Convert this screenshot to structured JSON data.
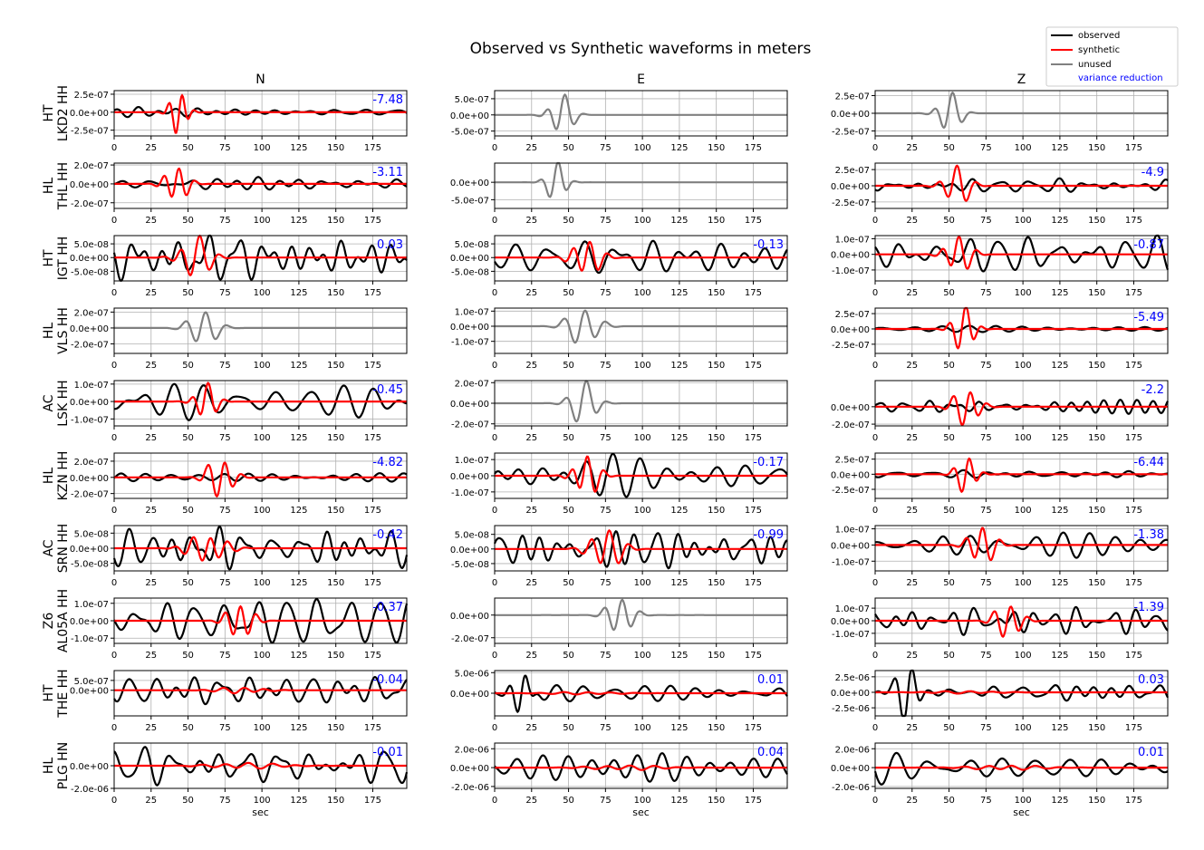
{
  "chart_data": {
    "type": "line",
    "title": "Observed vs Synthetic waveforms in meters",
    "xlabel": "sec",
    "xlim": [
      0,
      198
    ],
    "xticks": [
      0,
      25,
      50,
      75,
      100,
      125,
      150,
      175
    ],
    "grid": true,
    "legend": {
      "placement": "top-right",
      "entries": [
        {
          "label": "observed",
          "color": "#000000"
        },
        {
          "label": "synthetic",
          "color": "#ff0000"
        },
        {
          "label": "unused",
          "color": "#808080"
        },
        {
          "label": "variance reduction",
          "color": "#0000ff"
        }
      ]
    },
    "columns": [
      "N",
      "E",
      "Z"
    ],
    "stations": [
      {
        "net": "HT",
        "sta": "LKD2 HH",
        "channels": [
          {
            "used": true,
            "vr": "-7.48",
            "ylim": [
              -3.3e-07,
              3e-07
            ],
            "ticks": [
              2.5e-07,
              0,
              -2.5e-07
            ],
            "obs": {
              "amp": 5e-08,
              "seed": 1,
              "s": 0,
              "e": 198
            },
            "syn": {
              "amp": 3e-07,
              "center": 44,
              "width": 14,
              "period": 9,
              "seed": 11
            }
          },
          {
            "used": false,
            "vr": "",
            "ylim": [
              -6.5e-07,
              7.5e-07
            ],
            "ticks": [
              5e-07,
              0,
              -5e-07
            ],
            "obs": {
              "amp": 7e-07,
              "center": 45,
              "width": 18,
              "period": 13,
              "seed": 2
            }
          },
          {
            "used": false,
            "vr": "",
            "ylim": [
              -3.2e-07,
              3.2e-07
            ],
            "ticks": [
              2.5e-07,
              0,
              -2.5e-07
            ],
            "obs": {
              "amp": 3e-07,
              "center": 50,
              "width": 18,
              "period": 13,
              "seed": 3
            }
          }
        ]
      },
      {
        "net": "HL",
        "sta": "THL HH",
        "channels": [
          {
            "used": true,
            "vr": "-3.11",
            "ylim": [
              -2.6e-07,
              2.2e-07
            ],
            "ticks": [
              2e-07,
              0,
              -2e-07
            ],
            "obs": {
              "amp": 5e-08,
              "seed": 4,
              "s": 0,
              "e": 198
            },
            "syn": {
              "amp": 2.2e-07,
              "center": 42,
              "width": 18,
              "period": 11,
              "seed": 12
            }
          },
          {
            "used": false,
            "vr": "",
            "ylim": [
              -7.5e-07,
              5.5e-07
            ],
            "ticks": [
              0,
              -5e-07
            ],
            "obs": {
              "amp": 5.5e-07,
              "center": 42,
              "width": 16,
              "period": 12,
              "seed": 5
            }
          },
          {
            "used": true,
            "vr": "-4.9",
            "ylim": [
              -3.5e-07,
              3.5e-07
            ],
            "ticks": [
              2.5e-07,
              0,
              -2.5e-07
            ],
            "obs": {
              "amp": 8e-08,
              "seed": 6,
              "s": 0,
              "e": 198
            },
            "syn": {
              "amp": 3.3e-07,
              "center": 55,
              "width": 20,
              "period": 13,
              "seed": 13
            }
          }
        ]
      },
      {
        "net": "HT",
        "sta": "IGT HH",
        "channels": [
          {
            "used": true,
            "vr": "0.03",
            "ylim": [
              -8.5e-08,
              8e-08
            ],
            "ticks": [
              5e-08,
              0,
              -5e-08
            ],
            "obs": {
              "amp": 7.5e-08,
              "seed": 7,
              "s": 0,
              "e": 198
            },
            "syn": {
              "amp": 7.5e-08,
              "center": 55,
              "width": 25,
              "period": 13,
              "seed": 14
            }
          },
          {
            "used": true,
            "vr": "-0.13",
            "ylim": [
              -8.5e-08,
              8e-08
            ],
            "ticks": [
              5e-08,
              0,
              -5e-08
            ],
            "obs": {
              "amp": 6e-08,
              "seed": 8,
              "s": 0,
              "e": 198
            },
            "syn": {
              "amp": 7.5e-08,
              "center": 62,
              "width": 22,
              "period": 12,
              "seed": 15
            }
          },
          {
            "used": true,
            "vr": "-0.87",
            "ylim": [
              -1.7e-07,
              1.2e-07
            ],
            "ticks": [
              1e-07,
              0,
              -1e-07
            ],
            "obs": {
              "amp": 9e-08,
              "seed": 9,
              "s": 0,
              "e": 198
            },
            "syn": {
              "amp": 1.3e-07,
              "center": 56,
              "width": 20,
              "period": 12,
              "seed": 16
            }
          }
        ]
      },
      {
        "net": "HL",
        "sta": "VLS HH",
        "channels": [
          {
            "used": false,
            "vr": "",
            "ylim": [
              -3.2e-07,
              2.5e-07
            ],
            "ticks": [
              2e-07,
              0,
              -2e-07
            ],
            "obs": {
              "amp": 2.8e-07,
              "center": 60,
              "width": 22,
              "period": 15,
              "seed": 10
            }
          },
          {
            "used": false,
            "vr": "",
            "ylim": [
              -1.8e-07,
              1.2e-07
            ],
            "ticks": [
              1e-07,
              0,
              -1e-07
            ],
            "obs": {
              "amp": 1.5e-07,
              "center": 60,
              "width": 24,
              "period": 15,
              "seed": 17
            }
          },
          {
            "used": true,
            "vr": "-5.49",
            "ylim": [
              -4e-07,
              3.4e-07
            ],
            "ticks": [
              2.5e-07,
              0,
              -2.5e-07
            ],
            "obs": {
              "amp": 6e-08,
              "seed": 18,
              "s": 0,
              "e": 198
            },
            "syn": {
              "amp": 3.5e-07,
              "center": 60,
              "width": 18,
              "period": 11,
              "seed": 19
            }
          }
        ]
      },
      {
        "net": "AC",
        "sta": "LSK HH",
        "channels": [
          {
            "used": true,
            "vr": "-0.45",
            "ylim": [
              -1.4e-07,
              1.2e-07
            ],
            "ticks": [
              1e-07,
              0,
              -1e-07
            ],
            "obs": {
              "amp": 1e-07,
              "seed": 20,
              "s": 0,
              "e": 198
            },
            "syn": {
              "amp": 1e-07,
              "center": 62,
              "width": 18,
              "period": 11,
              "seed": 21
            }
          },
          {
            "used": false,
            "vr": "",
            "ylim": [
              -2.2e-07,
              2.2e-07
            ],
            "ticks": [
              2e-07,
              0,
              -2e-07
            ],
            "obs": {
              "amp": 2e-07,
              "center": 60,
              "width": 22,
              "period": 14,
              "seed": 22
            }
          },
          {
            "used": true,
            "vr": "-2.2",
            "ylim": [
              -2.2e-07,
              3e-07
            ],
            "ticks": [
              0,
              -2e-07
            ],
            "obs": {
              "amp": 8e-08,
              "seed": 23,
              "s": 0,
              "e": 198
            },
            "syn": {
              "amp": 2.5e-07,
              "center": 62,
              "width": 20,
              "period": 12,
              "seed": 24
            }
          }
        ]
      },
      {
        "net": "HL",
        "sta": "KZN HH",
        "channels": [
          {
            "used": true,
            "vr": "-4.82",
            "ylim": [
              -2.6e-07,
              3e-07
            ],
            "ticks": [
              2e-07,
              0,
              -2e-07
            ],
            "obs": {
              "amp": 5e-08,
              "seed": 25,
              "s": 0,
              "e": 198
            },
            "syn": {
              "amp": 2.9e-07,
              "center": 72,
              "width": 20,
              "period": 12,
              "seed": 26
            }
          },
          {
            "used": true,
            "vr": "-0.17",
            "ylim": [
              -1.4e-07,
              1.4e-07
            ],
            "ticks": [
              1e-07,
              0,
              -1e-07
            ],
            "obs": {
              "amp": 1e-07,
              "seed": 27,
              "s": 0,
              "e": 198
            },
            "syn": {
              "amp": 1.3e-07,
              "center": 62,
              "width": 20,
              "period": 11,
              "seed": 28
            }
          },
          {
            "used": true,
            "vr": "-6.44",
            "ylim": [
              -4e-07,
              3.5e-07
            ],
            "ticks": [
              2.5e-07,
              0,
              -2.5e-07
            ],
            "obs": {
              "amp": 5e-08,
              "seed": 29,
              "s": 0,
              "e": 198
            },
            "syn": {
              "amp": 3.3e-07,
              "center": 62,
              "width": 16,
              "period": 11,
              "seed": 30
            }
          }
        ]
      },
      {
        "net": "AC",
        "sta": "SRN HH",
        "channels": [
          {
            "used": true,
            "vr": "-0.42",
            "ylim": [
              -7.5e-08,
              7.5e-08
            ],
            "ticks": [
              5e-08,
              0,
              -5e-08
            ],
            "obs": {
              "amp": 6e-08,
              "seed": 31,
              "s": 0,
              "e": 198
            },
            "syn": {
              "amp": 5e-08,
              "center": 63,
              "width": 30,
              "period": 12,
              "seed": 32
            }
          },
          {
            "used": true,
            "vr": "-0.99",
            "ylim": [
              -7.5e-08,
              8e-08
            ],
            "ticks": [
              5e-08,
              0,
              -5e-08
            ],
            "obs": {
              "amp": 5.5e-08,
              "seed": 33,
              "s": 0,
              "e": 198
            },
            "syn": {
              "amp": 7.5e-08,
              "center": 75,
              "width": 25,
              "period": 13,
              "seed": 34
            }
          },
          {
            "used": true,
            "vr": "-1.38",
            "ylim": [
              -1.6e-07,
              1.2e-07
            ],
            "ticks": [
              1e-07,
              0,
              -1e-07
            ],
            "obs": {
              "amp": 7e-08,
              "seed": 35,
              "s": 0,
              "e": 198
            },
            "syn": {
              "amp": 1.4e-07,
              "center": 72,
              "width": 20,
              "period": 12,
              "seed": 36
            }
          }
        ]
      },
      {
        "net": "Z6",
        "sta": "AL05A HH",
        "channels": [
          {
            "used": true,
            "vr": "-0.37",
            "ylim": [
              -1.3e-07,
              1.3e-07
            ],
            "ticks": [
              1e-07,
              0,
              -1e-07
            ],
            "obs": {
              "amp": 1e-07,
              "seed": 37,
              "s": 0,
              "e": 198
            },
            "syn": {
              "amp": 1.2e-07,
              "center": 85,
              "width": 20,
              "period": 11,
              "seed": 38
            }
          },
          {
            "used": false,
            "vr": "",
            "ylim": [
              -2.5e-07,
              1.5e-07
            ],
            "ticks": [
              0,
              -2e-07
            ],
            "obs": {
              "amp": 2e-07,
              "center": 85,
              "width": 20,
              "period": 13,
              "seed": 39
            }
          },
          {
            "used": true,
            "vr": "-1.39",
            "ylim": [
              -1.8e-07,
              1.8e-07
            ],
            "ticks": [
              1e-07,
              0,
              -1e-07
            ],
            "obs": {
              "amp": 8e-08,
              "seed": 40,
              "s": 0,
              "e": 198
            },
            "syn": {
              "amp": 1.7e-07,
              "center": 90,
              "width": 20,
              "period": 12,
              "seed": 41
            }
          }
        ]
      },
      {
        "net": "HT",
        "sta": "THE HH",
        "channels": [
          {
            "used": true,
            "vr": "-0.04",
            "ylim": [
              -1.3e-06,
              1e-06
            ],
            "ticks": [
              5e-07,
              0
            ],
            "obs": {
              "amp": 6e-07,
              "seed": 42,
              "s": 0,
              "e": 198
            },
            "syn": {
              "amp": 1.5e-07,
              "center": 85,
              "width": 40,
              "period": 14,
              "seed": 43
            }
          },
          {
            "used": true,
            "vr": "0.01",
            "ylim": [
              -5.5e-06,
              5.5e-06
            ],
            "ticks": [
              5e-06,
              0
            ],
            "obs": {
              "amp": 2e-06,
              "seed": 44,
              "s": 0,
              "e": 198,
              "burst": {
                "center": 18,
                "width": 16,
                "amp": 4.5e-06
              }
            },
            "syn": {
              "amp": 3e-07,
              "center": 60,
              "width": 60,
              "period": 16,
              "seed": 45
            }
          },
          {
            "used": true,
            "vr": "0.03",
            "ylim": [
              -3.8e-06,
              3.5e-06
            ],
            "ticks": [
              2.5e-06,
              0,
              -2.5e-06
            ],
            "obs": {
              "amp": 1.2e-06,
              "seed": 46,
              "s": 0,
              "e": 198,
              "burst": {
                "center": 22,
                "width": 18,
                "amp": 3.2e-06
              }
            },
            "syn": {
              "amp": 2e-07,
              "center": 60,
              "width": 60,
              "period": 16,
              "seed": 47
            }
          }
        ]
      },
      {
        "net": "HL",
        "sta": "PLG HN",
        "channels": [
          {
            "used": true,
            "vr": "-0.01",
            "ylim": [
              -2e-06,
              2e-06
            ],
            "ticks": [
              0,
              -2e-06
            ],
            "obs": {
              "amp": 1.5e-06,
              "seed": 48,
              "s": 0,
              "e": 198
            },
            "syn": {
              "amp": 2.5e-07,
              "center": 90,
              "width": 60,
              "period": 16,
              "seed": 49
            }
          },
          {
            "used": true,
            "vr": "0.04",
            "ylim": [
              -2.2e-06,
              2.6e-06
            ],
            "ticks": [
              2e-06,
              0,
              -2e-06
            ],
            "obs": {
              "amp": 1.5e-06,
              "seed": 50,
              "s": 0,
              "e": 198
            },
            "syn": {
              "amp": 2.5e-07,
              "center": 90,
              "width": 60,
              "period": 16,
              "seed": 51
            }
          },
          {
            "used": true,
            "vr": "0.01",
            "ylim": [
              -2.2e-06,
              2.6e-06
            ],
            "ticks": [
              2e-06,
              0,
              -2e-06
            ],
            "obs": {
              "amp": 1.5e-06,
              "seed": 52,
              "s": 0,
              "e": 198
            },
            "syn": {
              "amp": 2.5e-07,
              "center": 90,
              "width": 60,
              "period": 16,
              "seed": 53
            }
          }
        ]
      }
    ]
  }
}
